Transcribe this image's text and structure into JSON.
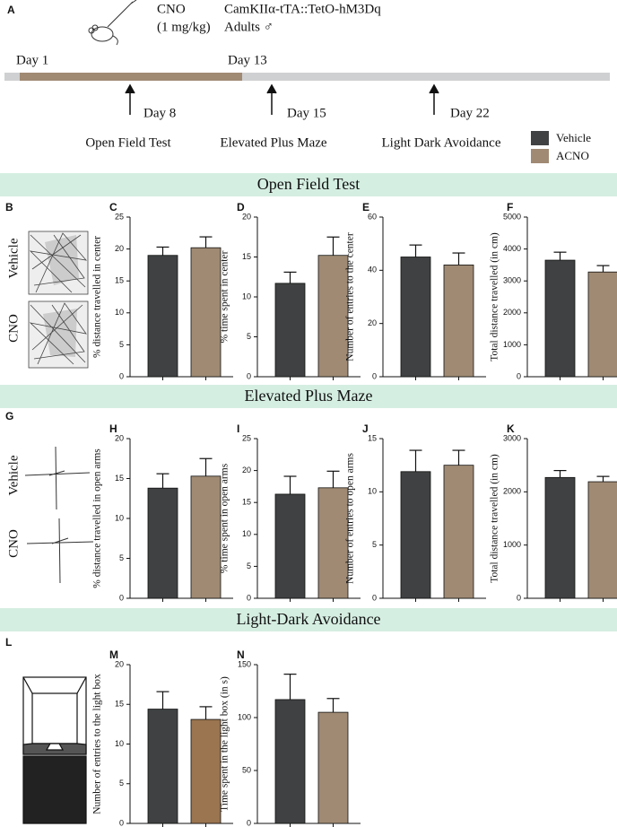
{
  "timeline": {
    "panel": "A",
    "drug": "CNO",
    "dose": "(1 mg/kg)",
    "genotype": "CamKIIα-tTA::TetO-hM3Dq",
    "subjects": "Adults ♂",
    "start": "Day 1",
    "end": "Day 13",
    "tests": [
      {
        "day": "Day 8",
        "name": "Open Field Test"
      },
      {
        "day": "Day 15",
        "name": "Elevated Plus Maze"
      },
      {
        "day": "Day 22",
        "name": "Light Dark Avoidance"
      }
    ]
  },
  "legend": [
    {
      "name": "Vehicle",
      "color": "#3f4142"
    },
    {
      "name": "ACNO",
      "color": "#a08a73"
    }
  ],
  "sections": [
    "Open Field Test",
    "Elevated Plus Maze",
    "Light-Dark Avoidance"
  ],
  "images": [
    {
      "panel": "B",
      "labels": [
        "Vehicle",
        "CNO"
      ]
    },
    {
      "panel": "G",
      "labels": [
        "Vehicle",
        "CNO"
      ]
    },
    {
      "panel": "L"
    }
  ],
  "chart_data": [
    {
      "type": "bar",
      "panel": "C",
      "y_label": "% distance travelled in center",
      "values": [
        19,
        20.2
      ],
      "errors": [
        1.3,
        1.7
      ],
      "colors": [
        "#3f4142",
        "#a08a73"
      ],
      "ylim": [
        0,
        25
      ],
      "yticks": [
        0,
        5,
        10,
        15,
        20,
        25
      ]
    },
    {
      "type": "bar",
      "panel": "D",
      "y_label": "% time spent in center",
      "values": [
        11.7,
        15.2
      ],
      "errors": [
        1.4,
        2.3
      ],
      "colors": [
        "#3f4142",
        "#a08a73"
      ],
      "ylim": [
        0,
        20
      ],
      "yticks": [
        0,
        5,
        10,
        15,
        20
      ]
    },
    {
      "type": "bar",
      "panel": "E",
      "y_label": "Number of entries to the center",
      "values": [
        45,
        42
      ],
      "errors": [
        4.5,
        4.5
      ],
      "colors": [
        "#3f4142",
        "#a08a73"
      ],
      "ylim": [
        0,
        60
      ],
      "yticks": [
        0,
        20,
        40,
        60
      ]
    },
    {
      "type": "bar",
      "panel": "F",
      "y_label": "Total distance travelled (in cm)",
      "values": [
        3650,
        3280
      ],
      "errors": [
        250,
        200
      ],
      "colors": [
        "#3f4142",
        "#a08a73"
      ],
      "ylim": [
        0,
        5000
      ],
      "yticks": [
        0,
        1000,
        2000,
        3000,
        4000,
        5000
      ]
    },
    {
      "type": "bar",
      "panel": "H",
      "y_label": "% distance travelled in open arms",
      "values": [
        13.8,
        15.3
      ],
      "errors": [
        1.8,
        2.2
      ],
      "colors": [
        "#3f4142",
        "#a08a73"
      ],
      "ylim": [
        0,
        20
      ],
      "yticks": [
        0,
        5,
        10,
        15,
        20
      ]
    },
    {
      "type": "bar",
      "panel": "I",
      "y_label": "% time spent in open arms",
      "values": [
        16.3,
        17.3
      ],
      "errors": [
        2.8,
        2.6
      ],
      "colors": [
        "#3f4142",
        "#a08a73"
      ],
      "ylim": [
        0,
        25
      ],
      "yticks": [
        0,
        5,
        10,
        15,
        20,
        25
      ]
    },
    {
      "type": "bar",
      "panel": "J",
      "y_label": "Number of entries to open arms",
      "values": [
        11.9,
        12.5
      ],
      "errors": [
        2.0,
        1.4
      ],
      "colors": [
        "#3f4142",
        "#a08a73"
      ],
      "ylim": [
        0,
        15
      ],
      "yticks": [
        0,
        5,
        10,
        15
      ]
    },
    {
      "type": "bar",
      "panel": "K",
      "y_label": "Total distance travelled (in cm)",
      "values": [
        2270,
        2190
      ],
      "errors": [
        130,
        100
      ],
      "colors": [
        "#3f4142",
        "#a08a73"
      ],
      "ylim": [
        0,
        3000
      ],
      "yticks": [
        0,
        1000,
        2000,
        3000
      ]
    },
    {
      "type": "bar",
      "panel": "M",
      "y_label": "Number of entries to the light box",
      "values": [
        14.4,
        13.1
      ],
      "errors": [
        2.2,
        1.6
      ],
      "colors": [
        "#3f4142",
        "#9a7550"
      ],
      "ylim": [
        0,
        20
      ],
      "yticks": [
        0,
        5,
        10,
        15,
        20
      ]
    },
    {
      "type": "bar",
      "panel": "N",
      "y_label": "Time spent in the light box (in s)",
      "values": [
        117,
        105
      ],
      "errors": [
        24,
        13
      ],
      "colors": [
        "#3f4142",
        "#a08a73"
      ],
      "ylim": [
        0,
        150
      ],
      "yticks": [
        0,
        50,
        100,
        150
      ]
    }
  ]
}
